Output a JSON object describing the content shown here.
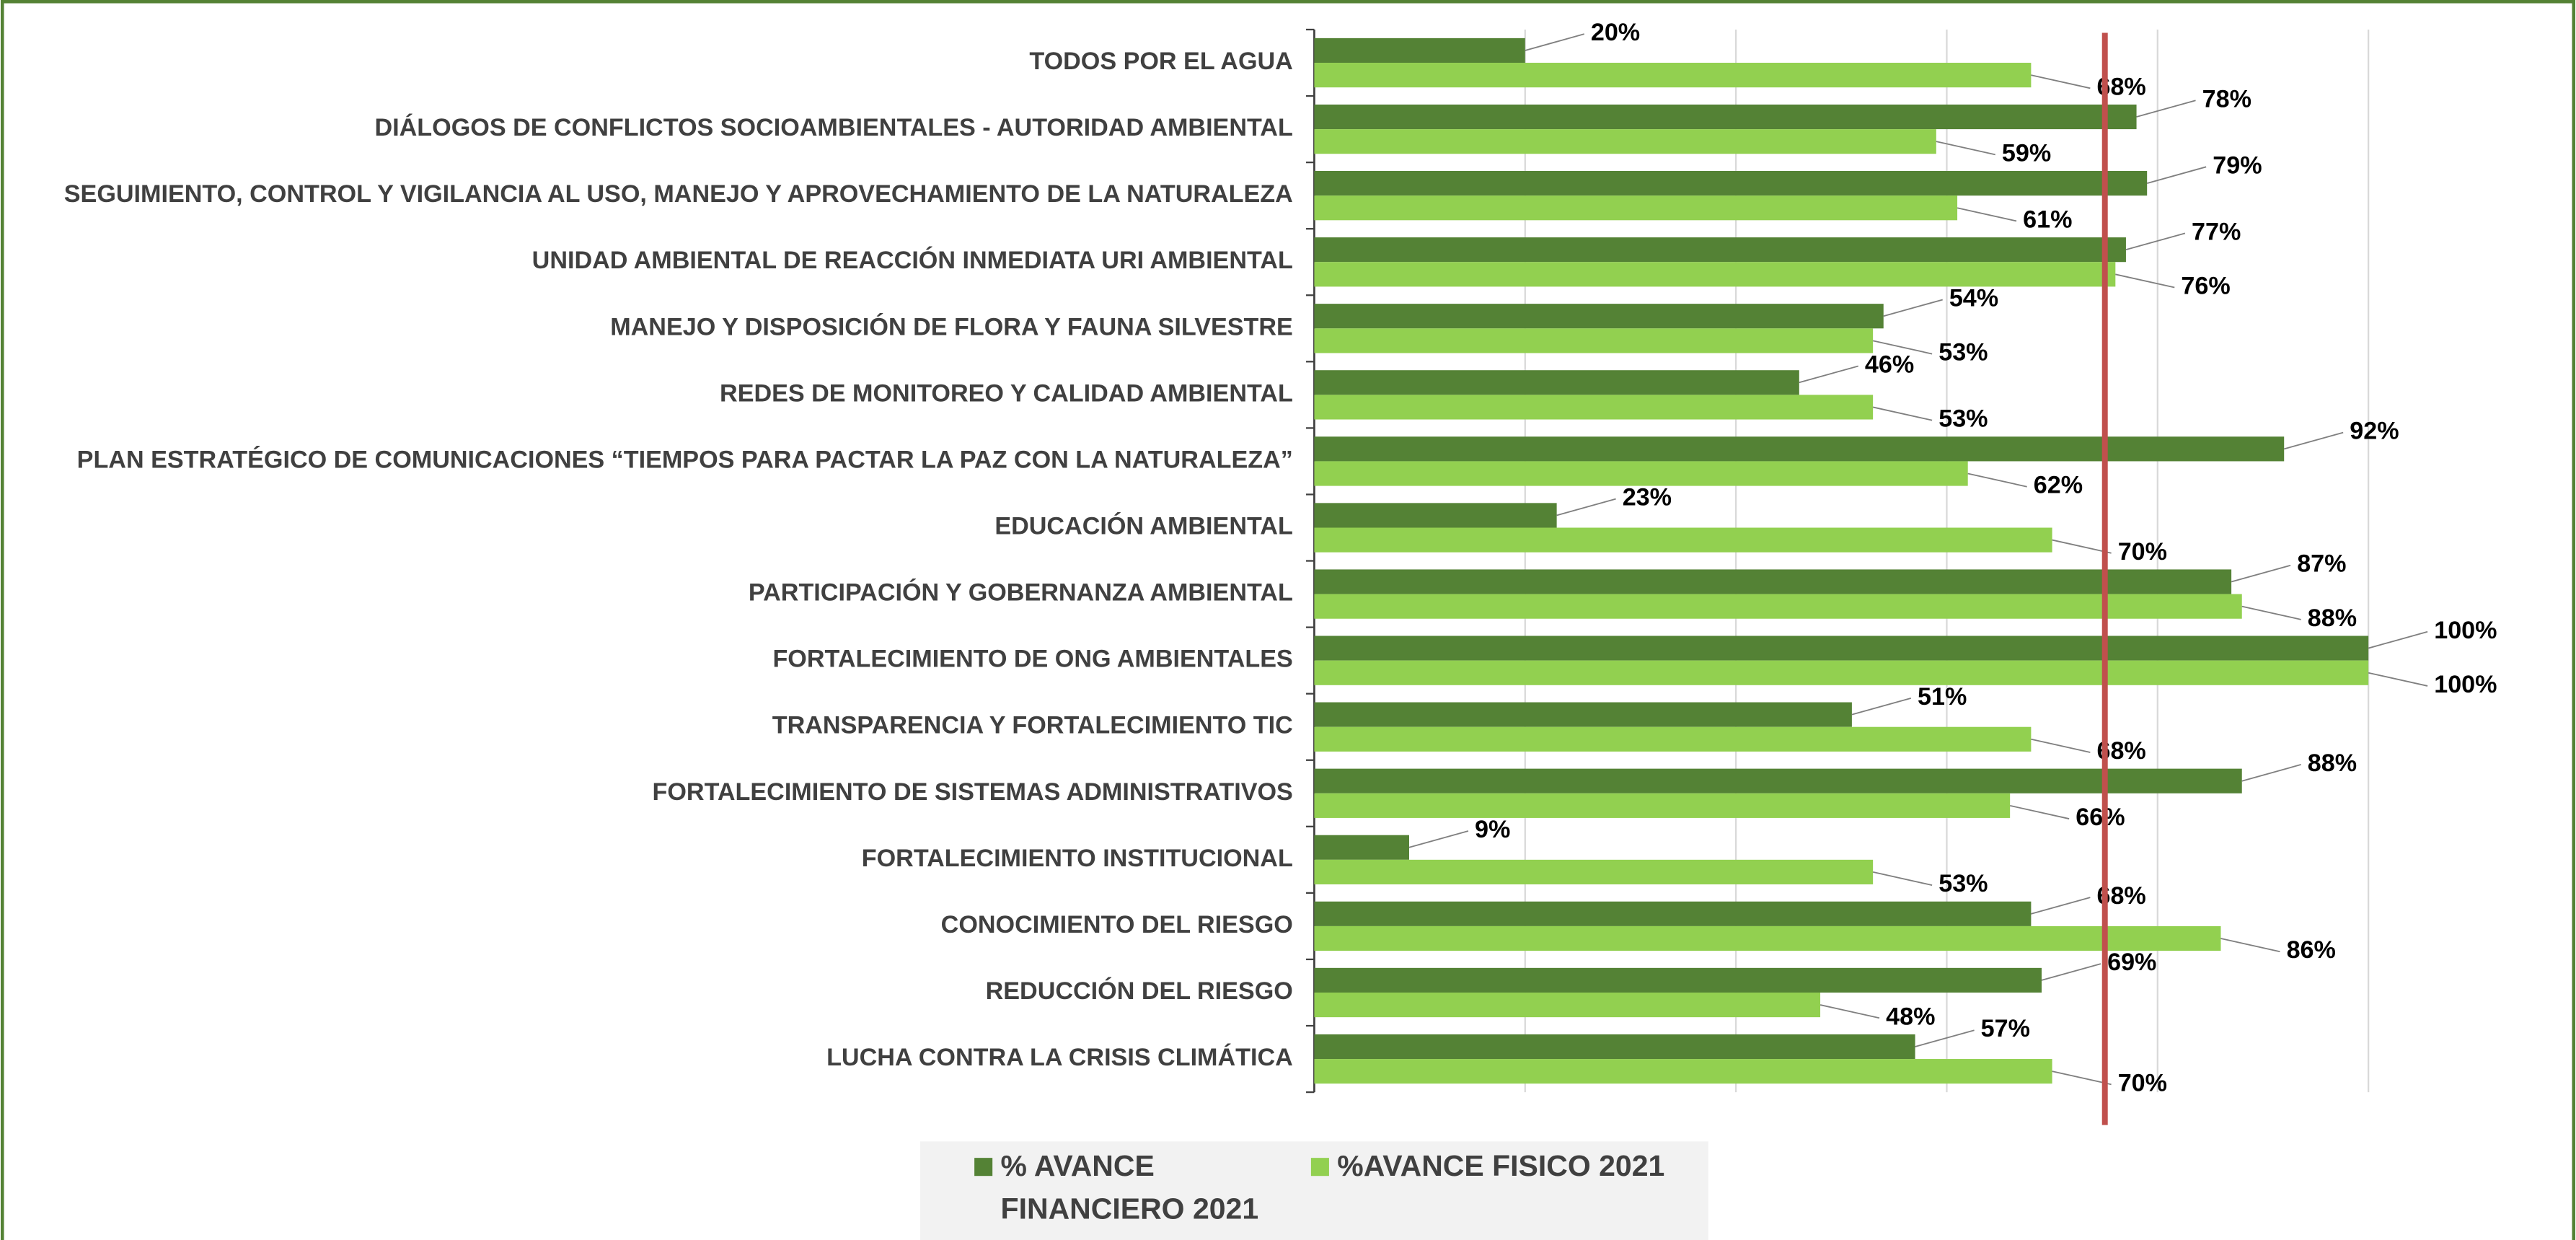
{
  "chart_data": {
    "type": "bar",
    "orientation": "horizontal",
    "categories": [
      "TODOS POR EL AGUA",
      "DIÁLOGOS DE CONFLICTOS SOCIOAMBIENTALES - AUTORIDAD AMBIENTAL",
      "SEGUIMIENTO, CONTROL Y VIGILANCIA AL USO, MANEJO Y APROVECHAMIENTO DE LA NATURALEZA",
      "UNIDAD AMBIENTAL DE REACCIÓN INMEDIATA URI AMBIENTAL",
      "MANEJO Y DISPOSICIÓN DE FLORA Y FAUNA SILVESTRE",
      "REDES DE MONITOREO Y CALIDAD AMBIENTAL",
      "PLAN ESTRATÉGICO DE COMUNICACIONES “TIEMPOS PARA PACTAR LA PAZ CON LA NATURALEZA”",
      "EDUCACIÓN AMBIENTAL",
      "PARTICIPACIÓN Y GOBERNANZA AMBIENTAL",
      "FORTALECIMIENTO DE ONG AMBIENTALES",
      "TRANSPARENCIA Y FORTALECIMIENTO TIC",
      "FORTALECIMIENTO DE SISTEMAS ADMINISTRATIVOS",
      "FORTALECIMIENTO INSTITUCIONAL",
      "CONOCIMIENTO DEL RIESGO",
      "REDUCCIÓN DEL RIESGO",
      "LUCHA CONTRA LA CRISIS CLIMÁTICA"
    ],
    "series": [
      {
        "name": "% AVANCE FINANCIERO 2021",
        "color": "#548235",
        "values": [
          20,
          78,
          79,
          77,
          54,
          46,
          92,
          23,
          87,
          100,
          51,
          88,
          9,
          68,
          69,
          57
        ],
        "value_labels": [
          "20%",
          "78%",
          "79%",
          "77%",
          "54%",
          "46%",
          "92%",
          "23%",
          "87%",
          "100%",
          "51%",
          "88%",
          "9%",
          "68%",
          "69%",
          "57%"
        ]
      },
      {
        "name": "%AVANCE FISICO 2021",
        "color": "#92d050",
        "values": [
          68,
          59,
          61,
          76,
          53,
          53,
          62,
          70,
          88,
          100,
          68,
          66,
          53,
          86,
          48,
          70
        ],
        "value_labels": [
          "68%",
          "59%",
          "61%",
          "76%",
          "53%",
          "53%",
          "62%",
          "70%",
          "88%",
          "100%",
          "68%",
          "66%",
          "53%",
          "86%",
          "48%",
          "70%"
        ]
      }
    ],
    "xlim": [
      0,
      100
    ],
    "xticks": [
      0,
      20,
      40,
      60,
      80,
      100
    ],
    "grid": true,
    "reference_line": {
      "value": 75,
      "color": "#c0504d"
    },
    "legend": "bottom"
  }
}
